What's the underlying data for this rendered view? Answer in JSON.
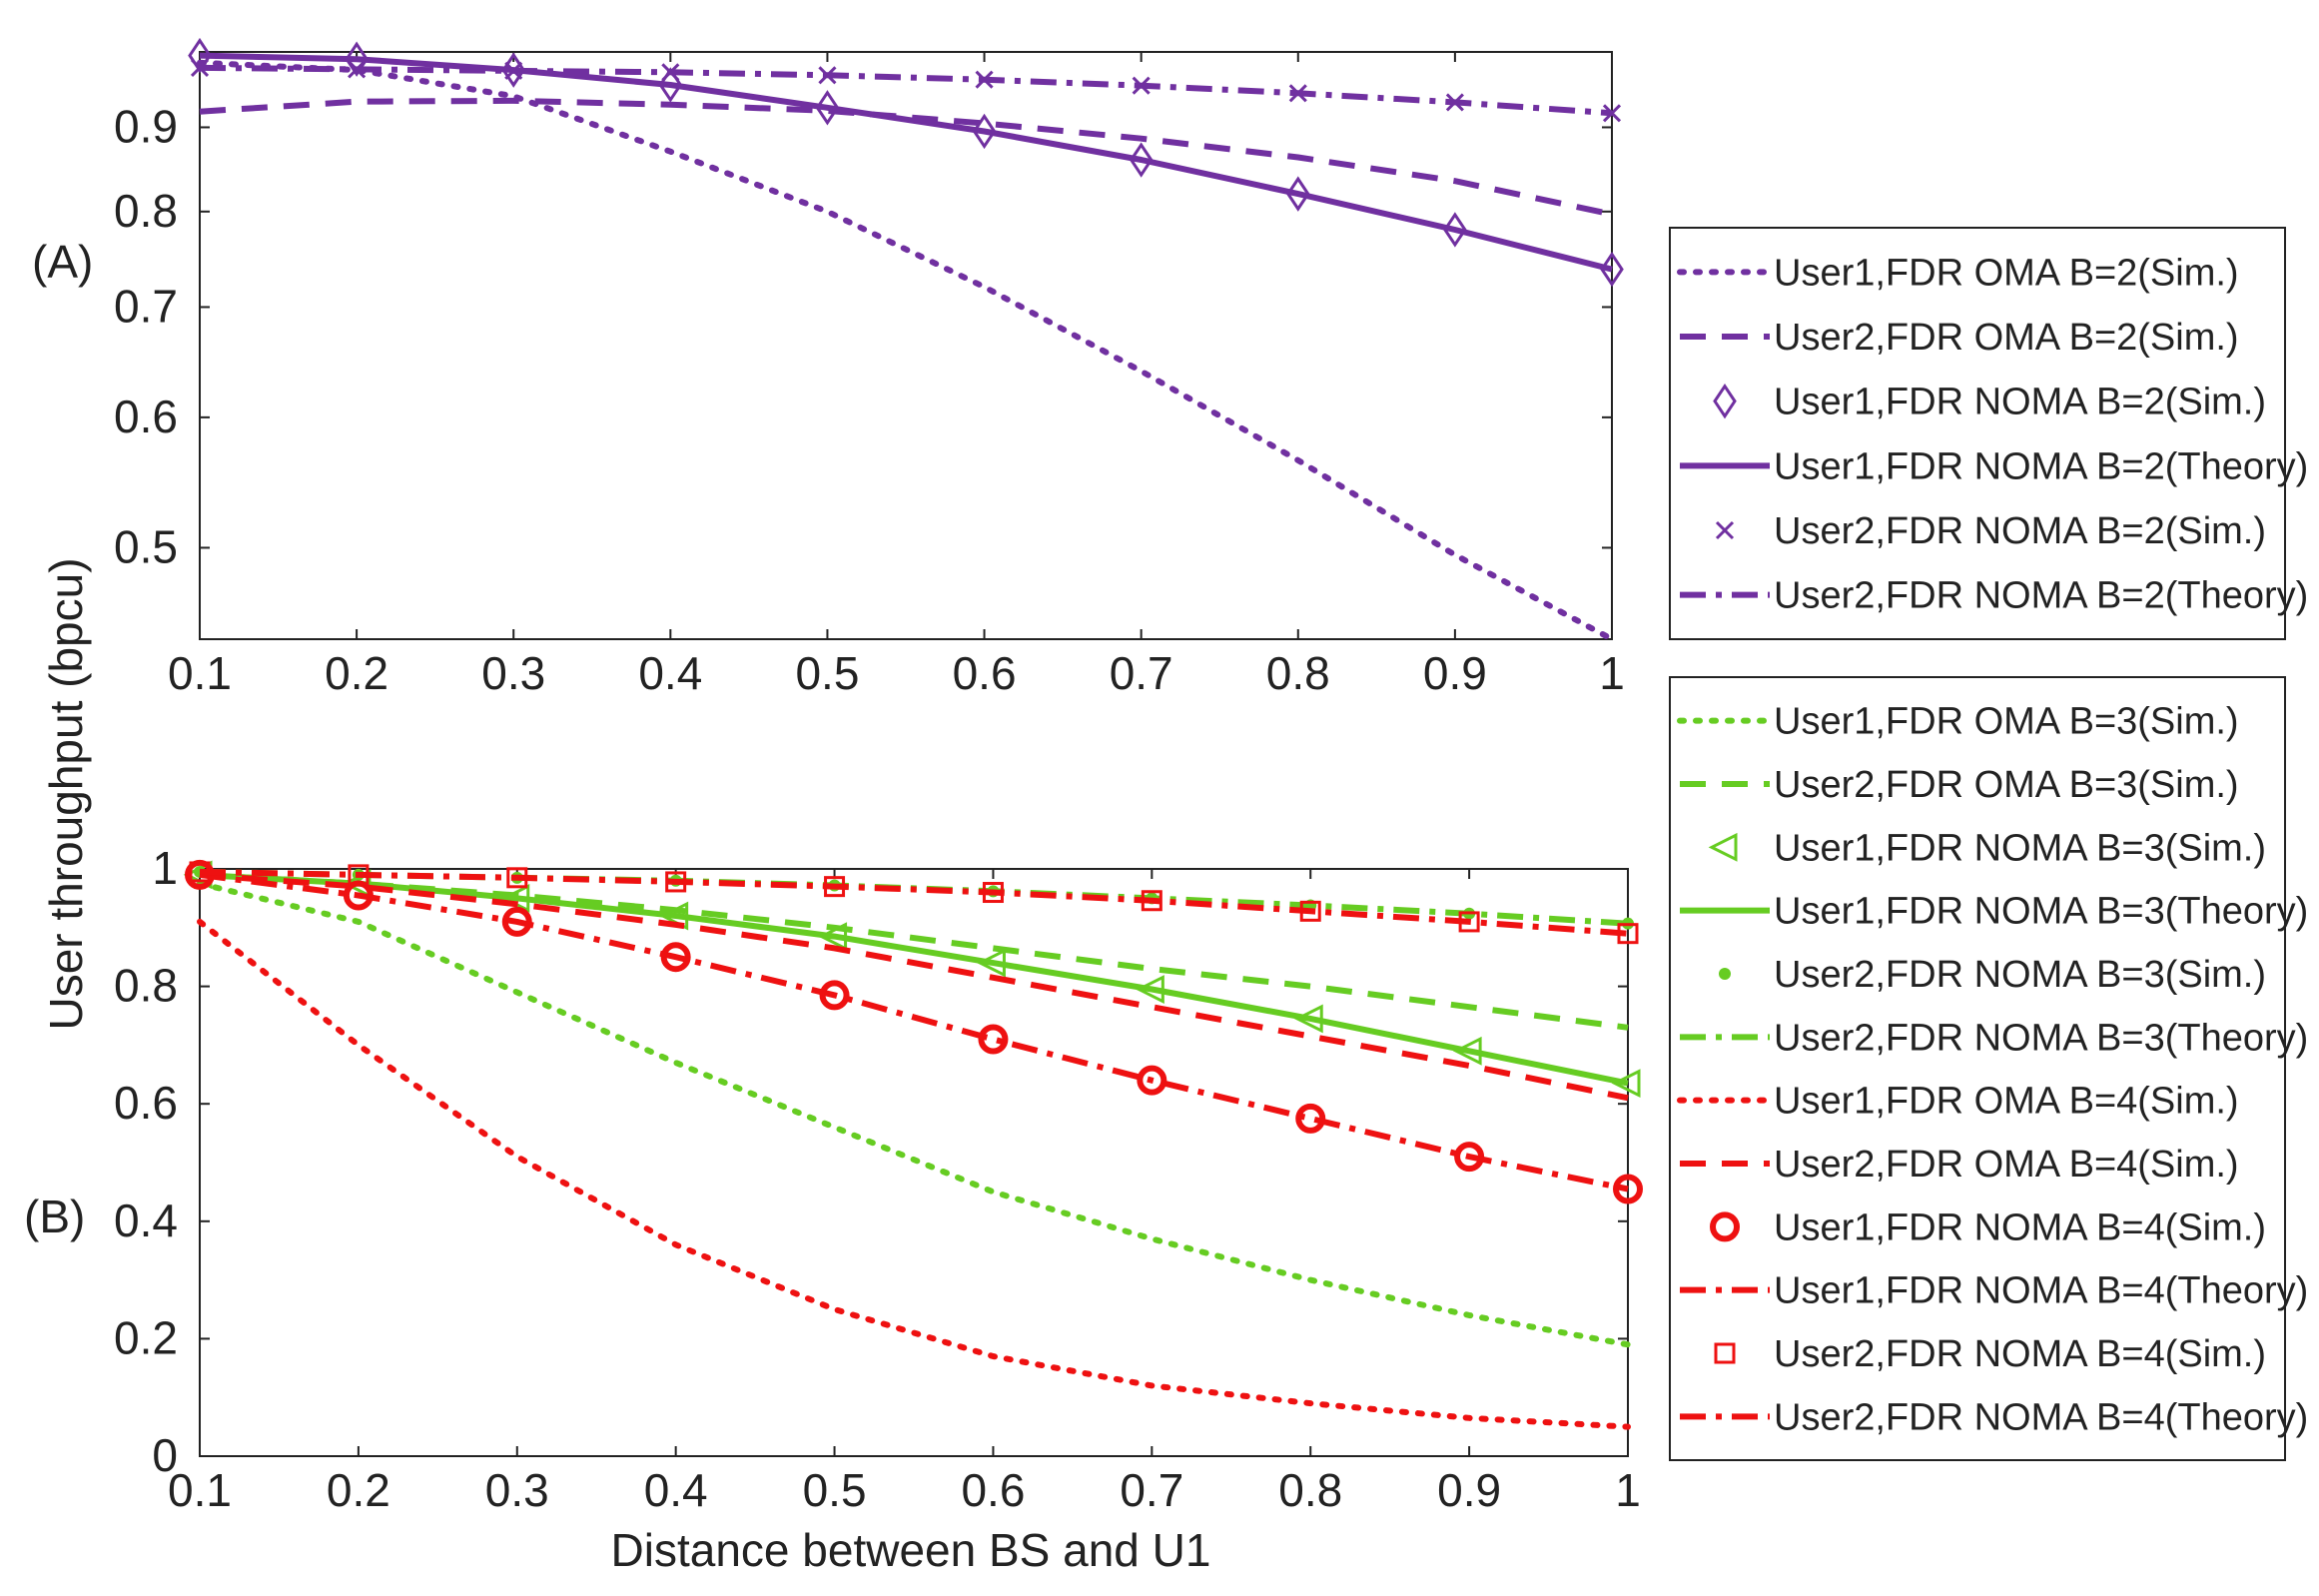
{
  "ylabel": "User throughput (bpcu)",
  "xlabel": "Distance between BS and U1",
  "chart_data": [
    {
      "panel": "(A)",
      "type": "line",
      "yscale": "log",
      "xlim": [
        0.1,
        1
      ],
      "ylim": [
        0.44,
        1.0
      ],
      "xticks": [
        "0.1",
        "0.2",
        "0.3",
        "0.4",
        "0.5",
        "0.6",
        "0.7",
        "0.8",
        "0.9",
        "1"
      ],
      "yticks": [
        0.5,
        0.6,
        0.7,
        0.8,
        0.9
      ],
      "ytick_labels": [
        "0.5",
        "0.6",
        "0.7",
        "0.8",
        "0.9"
      ],
      "x": [
        0.1,
        0.2,
        0.3,
        0.4,
        0.5,
        0.6,
        0.7,
        0.8,
        0.9,
        1.0
      ],
      "series": [
        {
          "name": "User1,FDR OMA B=2(Sim.)",
          "color": "#7030A0",
          "dash": "dot",
          "marker": "none",
          "values": [
            0.985,
            0.975,
            0.94,
            0.87,
            0.8,
            0.72,
            0.64,
            0.565,
            0.495,
            0.44
          ]
        },
        {
          "name": "User2,FDR OMA B=2(Sim.)",
          "color": "#7030A0",
          "dash": "dash",
          "marker": "none",
          "values": [
            0.92,
            0.933,
            0.934,
            0.929,
            0.921,
            0.905,
            0.886,
            0.863,
            0.835,
            0.797
          ]
        },
        {
          "name": "User1,FDR NOMA B=2(Sim.)",
          "color": "#7030A0",
          "dash": "none",
          "marker": "diamond",
          "line": false,
          "values": [
            0.995,
            0.99,
            0.975,
            0.955,
            0.925,
            0.895,
            0.86,
            0.82,
            0.78,
            0.738
          ]
        },
        {
          "name": "User1,FDR NOMA B=2(Theory)",
          "color": "#7030A0",
          "dash": "solid",
          "marker": "none",
          "values": [
            0.995,
            0.99,
            0.975,
            0.955,
            0.925,
            0.895,
            0.86,
            0.82,
            0.78,
            0.738
          ]
        },
        {
          "name": "User2,FDR NOMA B=2(Sim.)",
          "color": "#7030A0",
          "dash": "none",
          "marker": "x",
          "line": false,
          "values": [
            0.978,
            0.976,
            0.974,
            0.972,
            0.968,
            0.962,
            0.954,
            0.944,
            0.932,
            0.918
          ]
        },
        {
          "name": "User2,FDR NOMA B=2(Theory)",
          "color": "#7030A0",
          "dash": "dashdot",
          "marker": "none",
          "values": [
            0.978,
            0.976,
            0.974,
            0.972,
            0.968,
            0.962,
            0.954,
            0.944,
            0.932,
            0.918
          ]
        }
      ]
    },
    {
      "panel": "(B)",
      "type": "line",
      "yscale": "linear",
      "xlim": [
        0.1,
        1
      ],
      "ylim": [
        0,
        1
      ],
      "xticks": [
        "0.1",
        "0.2",
        "0.3",
        "0.4",
        "0.5",
        "0.6",
        "0.7",
        "0.8",
        "0.9",
        "1"
      ],
      "yticks": [
        0,
        0.2,
        0.4,
        0.6,
        0.8,
        1
      ],
      "ytick_labels": [
        "0",
        "0.2",
        "0.4",
        "0.6",
        "0.8",
        "1"
      ],
      "x": [
        0.1,
        0.2,
        0.3,
        0.4,
        0.5,
        0.6,
        0.7,
        0.8,
        0.9,
        1.0
      ],
      "series": [
        {
          "name": "User1,FDR OMA B=3(Sim.)",
          "color": "#66CC22",
          "dash": "dot",
          "marker": "none",
          "values": [
            0.975,
            0.91,
            0.79,
            0.67,
            0.56,
            0.45,
            0.37,
            0.3,
            0.24,
            0.19
          ]
        },
        {
          "name": "User2,FDR OMA B=3(Sim.)",
          "color": "#66CC22",
          "dash": "dash",
          "marker": "none",
          "values": [
            0.99,
            0.975,
            0.955,
            0.93,
            0.9,
            0.865,
            0.83,
            0.8,
            0.765,
            0.73
          ]
        },
        {
          "name": "User1,FDR NOMA B=3(Sim.)",
          "color": "#66CC22",
          "dash": "none",
          "marker": "triangle-left",
          "line": false,
          "values": [
            0.99,
            0.975,
            0.95,
            0.92,
            0.885,
            0.84,
            0.795,
            0.745,
            0.69,
            0.635
          ]
        },
        {
          "name": "User1,FDR NOMA B=3(Theory)",
          "color": "#66CC22",
          "dash": "solid",
          "marker": "none",
          "values": [
            0.99,
            0.975,
            0.95,
            0.92,
            0.885,
            0.84,
            0.795,
            0.745,
            0.69,
            0.635
          ]
        },
        {
          "name": "User2,FDR NOMA B=3(Sim.)",
          "color": "#66CC22",
          "dash": "none",
          "marker": "dot",
          "line": false,
          "values": [
            0.995,
            0.99,
            0.985,
            0.98,
            0.972,
            0.962,
            0.95,
            0.938,
            0.924,
            0.907
          ]
        },
        {
          "name": "User2,FDR NOMA B=3(Theory)",
          "color": "#66CC22",
          "dash": "dashdot",
          "marker": "none",
          "values": [
            0.995,
            0.99,
            0.985,
            0.98,
            0.972,
            0.962,
            0.95,
            0.938,
            0.924,
            0.907
          ]
        },
        {
          "name": "User1,FDR OMA B=4(Sim.)",
          "color": "#EE1111",
          "dash": "dot",
          "marker": "none",
          "values": [
            0.91,
            0.7,
            0.51,
            0.36,
            0.25,
            0.17,
            0.12,
            0.09,
            0.065,
            0.05
          ]
        },
        {
          "name": "User2,FDR OMA B=4(Sim.)",
          "color": "#EE1111",
          "dash": "dash",
          "marker": "none",
          "values": [
            0.99,
            0.97,
            0.94,
            0.905,
            0.865,
            0.815,
            0.765,
            0.715,
            0.665,
            0.61
          ]
        },
        {
          "name": "User1,FDR NOMA B=4(Sim.)",
          "color": "#EE1111",
          "dash": "none",
          "marker": "circle",
          "line": false,
          "values": [
            0.99,
            0.955,
            0.91,
            0.85,
            0.785,
            0.71,
            0.64,
            0.575,
            0.51,
            0.455
          ]
        },
        {
          "name": "User1,FDR NOMA B=4(Theory)",
          "color": "#EE1111",
          "dash": "dashdot",
          "marker": "none",
          "values": [
            0.99,
            0.955,
            0.91,
            0.85,
            0.785,
            0.71,
            0.64,
            0.575,
            0.51,
            0.455
          ]
        },
        {
          "name": "User2,FDR NOMA B=4(Sim.)",
          "color": "#EE1111",
          "dash": "none",
          "marker": "square",
          "line": false,
          "values": [
            0.995,
            0.99,
            0.985,
            0.978,
            0.97,
            0.96,
            0.946,
            0.928,
            0.91,
            0.89
          ]
        },
        {
          "name": "User2,FDR NOMA B=4(Theory)",
          "color": "#EE1111",
          "dash": "dashdot",
          "marker": "none",
          "values": [
            0.995,
            0.99,
            0.985,
            0.978,
            0.97,
            0.96,
            0.946,
            0.928,
            0.91,
            0.89
          ]
        }
      ]
    }
  ]
}
